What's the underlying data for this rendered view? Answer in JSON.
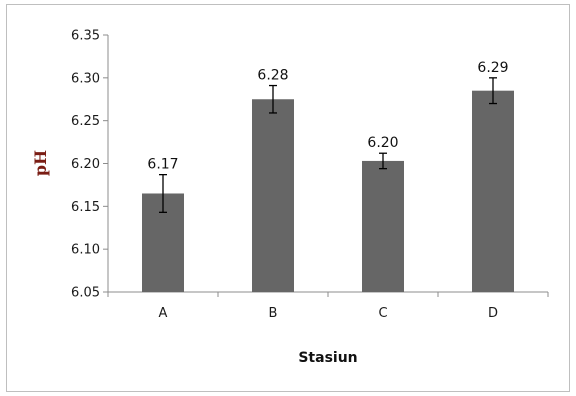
{
  "chart_data": {
    "type": "bar",
    "title": "",
    "xlabel": "Stasiun",
    "ylabel": "pH",
    "categories": [
      "A",
      "B",
      "C",
      "D"
    ],
    "values": [
      6.165,
      6.275,
      6.203,
      6.285
    ],
    "data_labels": [
      "6.17",
      "6.28",
      "6.20",
      "6.29"
    ],
    "error": [
      0.022,
      0.016,
      0.009,
      0.015
    ],
    "ylim": [
      6.05,
      6.35
    ],
    "yticks": [
      6.05,
      6.1,
      6.15,
      6.2,
      6.25,
      6.3,
      6.35
    ],
    "ytick_labels": [
      "6.05",
      "6.10",
      "6.15",
      "6.20",
      "6.25",
      "6.30",
      "6.35"
    ],
    "grid": false,
    "legend": "none",
    "colors": {
      "bar": "#666666",
      "axis": "#8c8c8c",
      "ylabel": "#7a1d14"
    }
  }
}
